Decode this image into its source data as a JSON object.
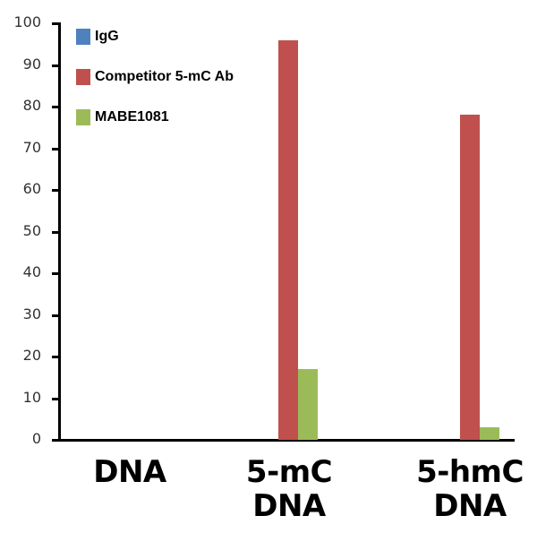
{
  "chart_data": {
    "type": "bar",
    "title": "",
    "xlabel": "",
    "ylabel": "",
    "ylim": [
      0,
      100
    ],
    "yticks": [
      0,
      10,
      20,
      30,
      40,
      50,
      60,
      70,
      80,
      90,
      100
    ],
    "grid": false,
    "legend_position": "upper-left (inside plot)",
    "categories": [
      "DNA",
      "5-mC DNA",
      "5-hmC DNA"
    ],
    "category_labels": [
      [
        "DNA"
      ],
      [
        "5-mC",
        "DNA"
      ],
      [
        "5-hmC",
        "DNA"
      ]
    ],
    "series": [
      {
        "name": "IgG",
        "color": "#4f81bd",
        "values": [
          0,
          0,
          0
        ]
      },
      {
        "name": "Competitor 5-mC Ab",
        "color": "#c0504d",
        "values": [
          0,
          96,
          78
        ]
      },
      {
        "name": "MABE1081",
        "color": "#9bbb59",
        "values": [
          0,
          17,
          3
        ]
      }
    ]
  },
  "axis": {
    "ytick_labels": [
      "0",
      "10",
      "20",
      "30",
      "40",
      "50",
      "60",
      "70",
      "80",
      "90",
      "100"
    ]
  },
  "legend": {
    "items": [
      {
        "label": "IgG",
        "color": "#4f81bd"
      },
      {
        "label": "Competitor 5-mC Ab",
        "color": "#c0504d"
      },
      {
        "label": "MABE1081",
        "color": "#9bbb59"
      }
    ]
  },
  "labels": {
    "cat0_line1": "DNA",
    "cat1_line1": "5-mC",
    "cat1_line2": "DNA",
    "cat2_line1": "5-hmC",
    "cat2_line2": "DNA"
  }
}
